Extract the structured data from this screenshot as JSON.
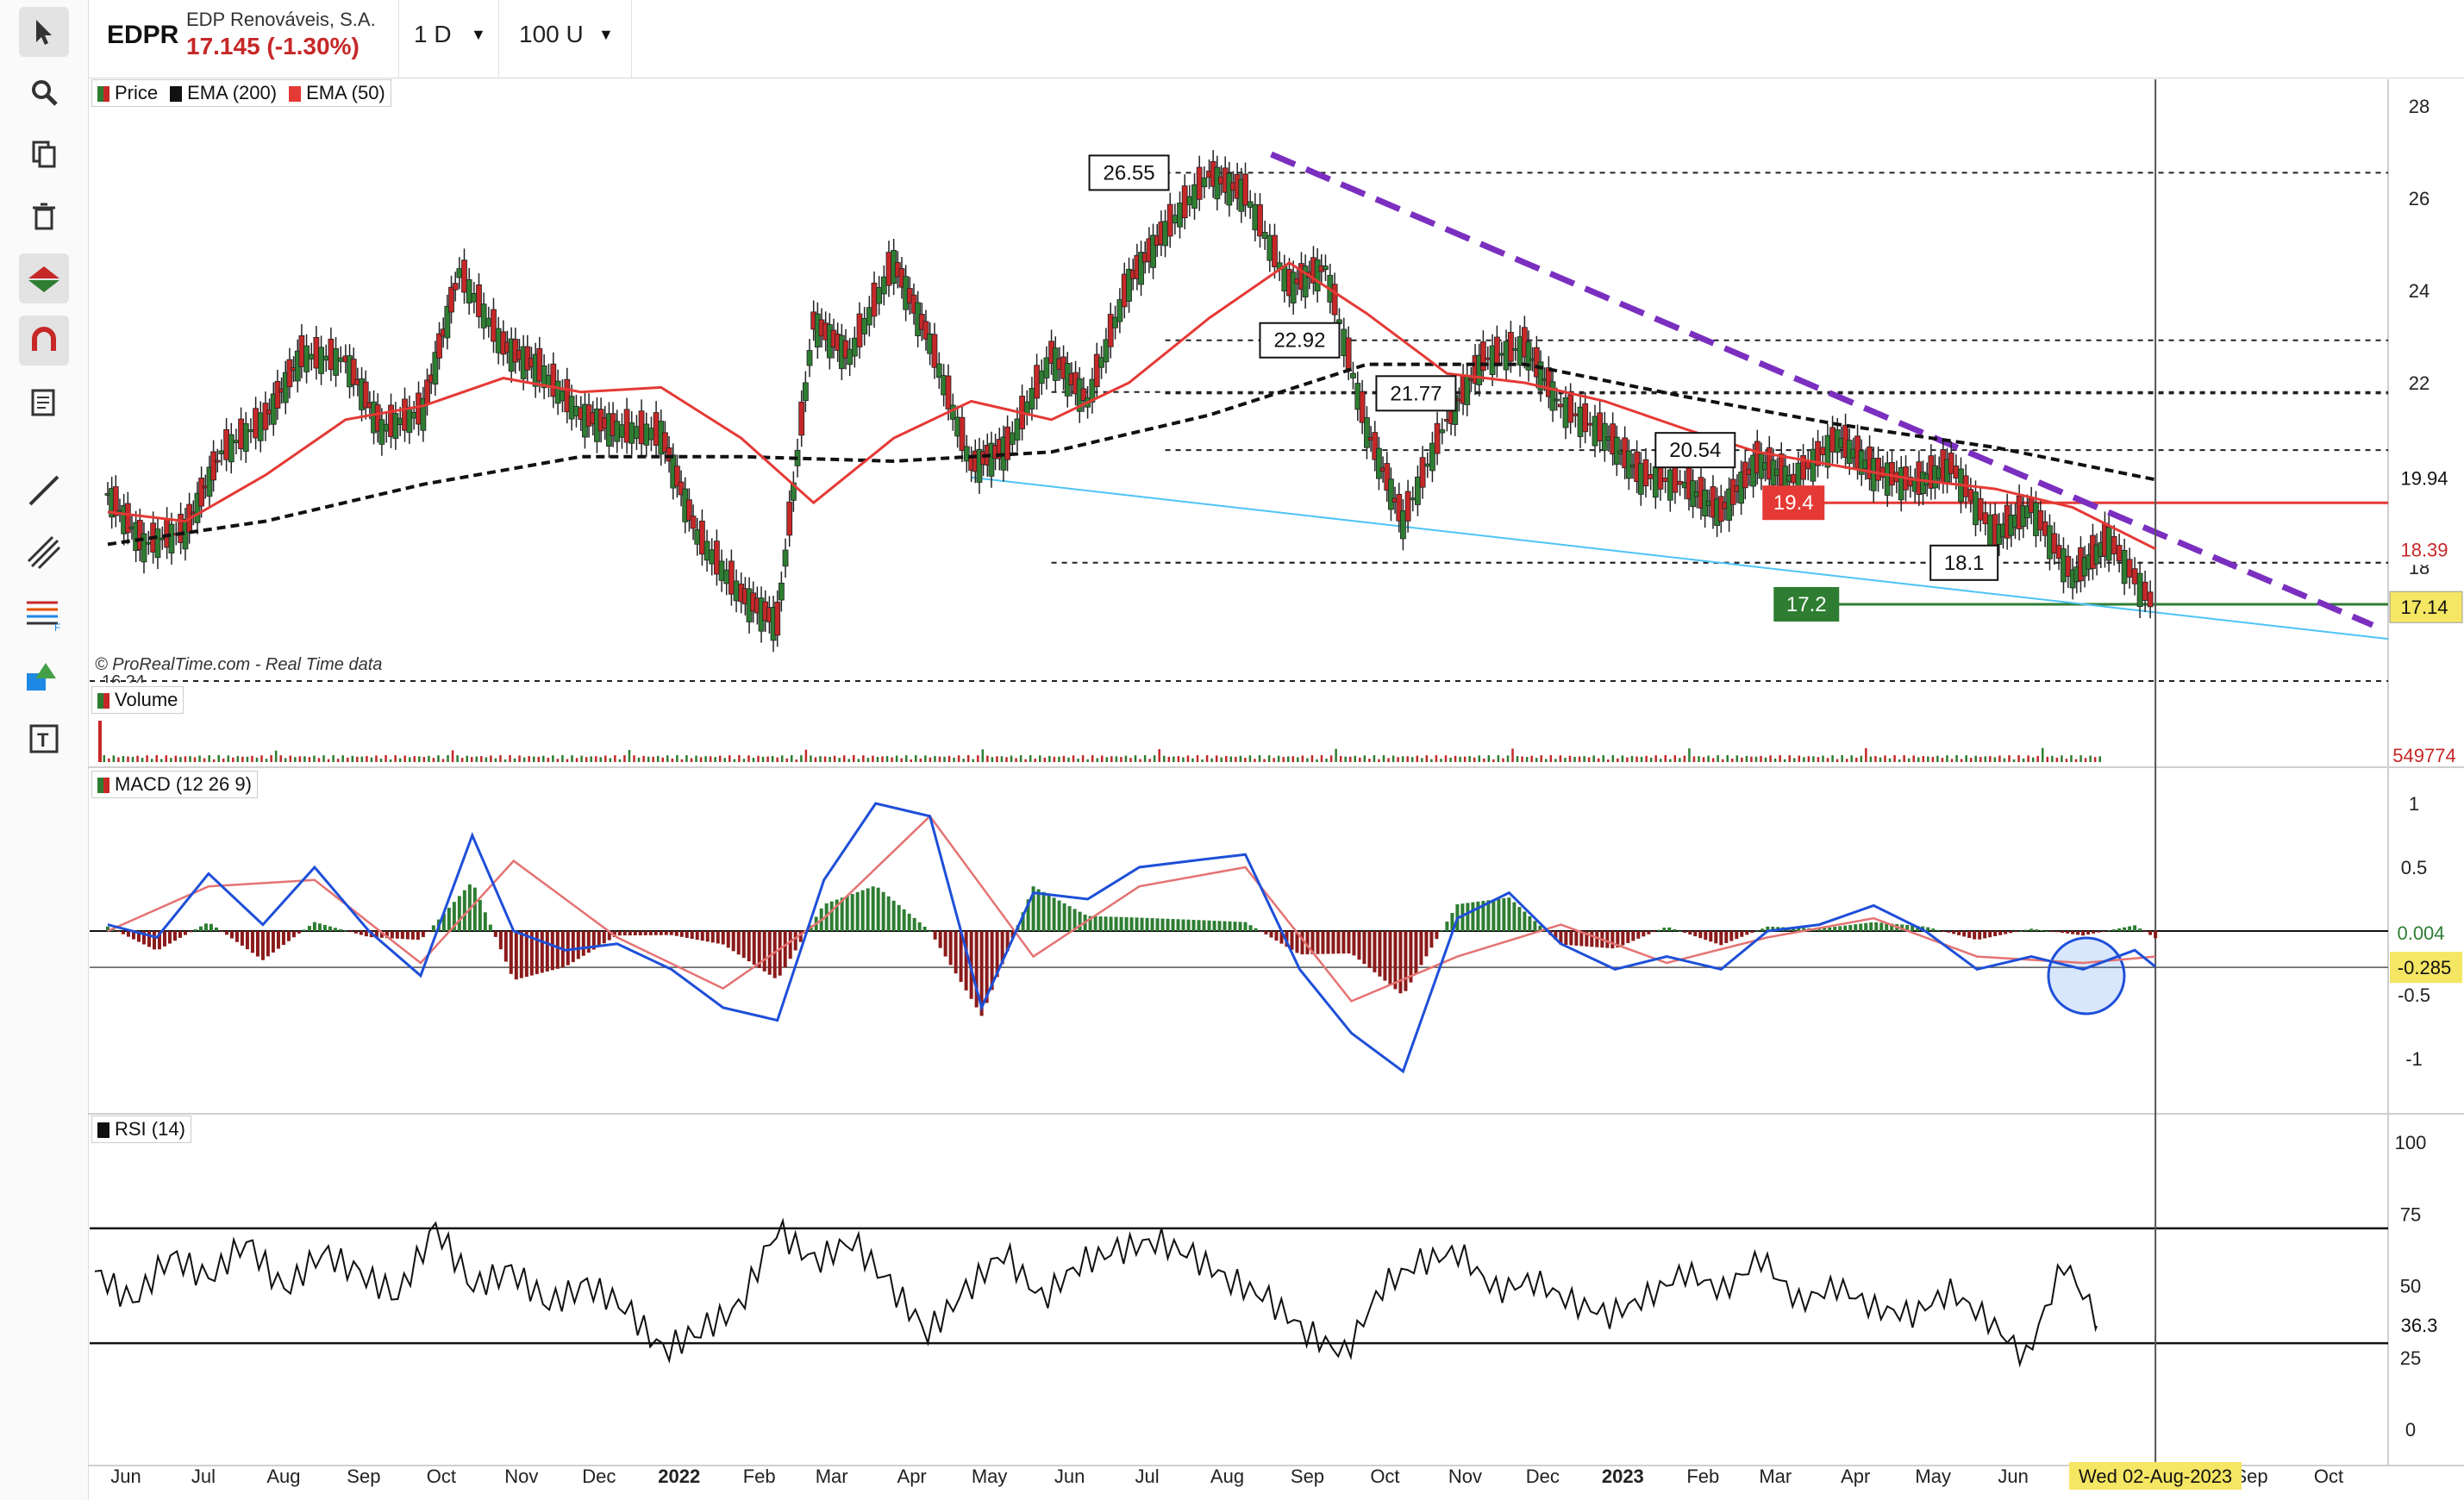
{
  "header": {
    "symbol": "EDPR",
    "name": "EDP Renováveis, S.A.",
    "price": "17.145 (-1.30%)",
    "interval": "1 D",
    "units": "100 U"
  },
  "toolbar": {
    "icons": [
      "cursor-icon",
      "zoom-icon",
      "copy-icon",
      "trash-icon",
      "trend-icon",
      "magnet-icon",
      "notes-icon",
      "line-icon",
      "channel-icon",
      "fibonacci-icon",
      "shapes-icon",
      "text-icon"
    ]
  },
  "legends": {
    "price": "Price",
    "ema200": "EMA (200)",
    "ema50": "EMA (50)",
    "volume": "Volume",
    "macd": "MACD (12 26 9)",
    "rsi": "RSI (14)",
    "watermark": "© ProRealTime.com - Real Time data",
    "cut_label": "16.24"
  },
  "colors": {
    "up": "#2e7d32",
    "down": "#c62828",
    "ema50": "#e53935",
    "ema200": "#111111",
    "trendline": "#7b2fbf",
    "support_line": "#4fc3f7",
    "level_red": "#e53935",
    "level_green": "#2e7d32",
    "highlight": "#f5e663"
  },
  "chart_data": {
    "type": "line",
    "x_ticks": [
      "Jun",
      "Jul",
      "Aug",
      "Sep",
      "Oct",
      "Nov",
      "Dec",
      "2022",
      "Feb",
      "Mar",
      "Apr",
      "May",
      "Jun",
      "Jul",
      "Aug",
      "Sep",
      "Oct",
      "Nov",
      "Dec",
      "2023",
      "Feb",
      "Mar",
      "Apr",
      "May",
      "Jun",
      "Jul",
      "Aug",
      "Sep",
      "Oct"
    ],
    "cursor_date": "Wed 02-Aug-2023",
    "price_axis": {
      "ticks": [
        28,
        26,
        24,
        22,
        20,
        18
      ],
      "ylim": [
        15.5,
        28.5
      ]
    },
    "tags": [
      {
        "label": "19.94",
        "value": 19.94,
        "style": "plain"
      },
      {
        "label": "18.39",
        "value": 18.39,
        "style": "red-text"
      },
      {
        "label": "17.14",
        "value": 17.14,
        "style": "yellow"
      }
    ],
    "annotations": [
      {
        "label": "26.55",
        "value": 26.55
      },
      {
        "label": "22.92",
        "value": 22.92
      },
      {
        "label": "21.77",
        "value": 21.77
      },
      {
        "label": "20.54",
        "value": 20.54
      },
      {
        "label": "18.1",
        "value": 18.1
      }
    ],
    "extra_levels": [
      21.8,
      18.1
    ],
    "red_level": {
      "label": "19.4",
      "value": 19.4
    },
    "green_level": {
      "label": "17.2",
      "value": 17.2
    },
    "series": [
      {
        "name": "Price",
        "x": [
          "2021-06-01",
          "2021-06-15",
          "2021-07-01",
          "2021-07-15",
          "2021-08-01",
          "2021-08-15",
          "2021-09-01",
          "2021-09-15",
          "2021-10-01",
          "2021-10-15",
          "2021-11-01",
          "2021-11-15",
          "2021-12-01",
          "2021-12-15",
          "2022-01-01",
          "2022-01-15",
          "2022-02-01",
          "2022-02-15",
          "2022-03-01",
          "2022-03-15",
          "2022-04-01",
          "2022-04-15",
          "2022-05-01",
          "2022-05-15",
          "2022-06-01",
          "2022-06-15",
          "2022-07-01",
          "2022-07-15",
          "2022-08-01",
          "2022-08-15",
          "2022-09-01",
          "2022-09-15",
          "2022-10-01",
          "2022-10-15",
          "2022-11-01",
          "2022-11-15",
          "2022-12-01",
          "2022-12-15",
          "2023-01-01",
          "2023-01-15",
          "2023-02-01",
          "2023-02-15",
          "2023-03-01",
          "2023-03-15",
          "2023-04-01",
          "2023-04-15",
          "2023-05-01",
          "2023-05-15",
          "2023-06-01",
          "2023-06-15",
          "2023-07-01",
          "2023-07-15",
          "2023-08-02"
        ],
        "values": [
          19.6,
          18.5,
          18.8,
          20.5,
          21.2,
          22.6,
          22.5,
          21.0,
          21.4,
          24.4,
          22.8,
          22.3,
          21.3,
          21.0,
          20.9,
          18.7,
          17.4,
          16.8,
          23.3,
          22.6,
          24.6,
          22.9,
          20.2,
          20.6,
          22.6,
          21.6,
          24.2,
          25.3,
          26.5,
          26.1,
          24.1,
          24.5,
          21.0,
          19.0,
          21.2,
          22.5,
          22.8,
          21.5,
          20.9,
          20.0,
          19.8,
          19.2,
          20.3,
          19.9,
          20.8,
          20.1,
          19.8,
          20.2,
          18.7,
          19.3,
          17.8,
          18.6,
          17.1
        ]
      },
      {
        "name": "EMA (50)",
        "x": [
          "2021-06-01",
          "2021-07-01",
          "2021-08-01",
          "2021-09-01",
          "2021-10-01",
          "2021-11-01",
          "2021-12-01",
          "2022-01-01",
          "2022-02-01",
          "2022-03-01",
          "2022-04-01",
          "2022-05-01",
          "2022-06-01",
          "2022-07-01",
          "2022-08-01",
          "2022-09-01",
          "2022-10-01",
          "2022-11-01",
          "2022-12-01",
          "2023-01-01",
          "2023-02-01",
          "2023-03-01",
          "2023-04-01",
          "2023-05-01",
          "2023-06-01",
          "2023-07-01",
          "2023-08-02"
        ],
        "values": [
          19.2,
          19.0,
          20.0,
          21.2,
          21.5,
          22.1,
          21.8,
          21.9,
          20.8,
          19.4,
          20.8,
          21.6,
          21.2,
          22.0,
          23.4,
          24.6,
          23.5,
          22.2,
          22.0,
          21.6,
          21.0,
          20.5,
          20.2,
          19.9,
          19.7,
          19.3,
          18.4
        ]
      },
      {
        "name": "EMA (200)",
        "x": [
          "2021-06-01",
          "2021-08-01",
          "2021-10-01",
          "2021-12-01",
          "2022-02-01",
          "2022-04-01",
          "2022-06-01",
          "2022-08-01",
          "2022-10-01",
          "2022-12-01",
          "2023-02-01",
          "2023-04-01",
          "2023-06-01",
          "2023-08-02"
        ],
        "values": [
          18.5,
          19.0,
          19.8,
          20.4,
          20.4,
          20.3,
          20.5,
          21.3,
          22.4,
          22.4,
          21.7,
          21.1,
          20.6,
          19.9
        ]
      }
    ],
    "volume": {
      "tag": "549774"
    },
    "macd": {
      "ticks": [
        1,
        0.5,
        -0.5,
        -1
      ],
      "tags": [
        {
          "label": "0.004",
          "value": 0.004
        },
        {
          "label": "-0.285",
          "value": -0.285
        }
      ],
      "series": [
        {
          "name": "MACD",
          "x": [
            "2021-06-01",
            "2021-06-20",
            "2021-07-10",
            "2021-07-31",
            "2021-08-20",
            "2021-09-10",
            "2021-09-30",
            "2021-10-20",
            "2021-11-05",
            "2021-11-25",
            "2021-12-15",
            "2022-01-05",
            "2022-01-25",
            "2022-02-15",
            "2022-03-05",
            "2022-03-25",
            "2022-04-15",
            "2022-05-05",
            "2022-05-25",
            "2022-06-15",
            "2022-07-05",
            "2022-07-25",
            "2022-08-15",
            "2022-09-05",
            "2022-09-25",
            "2022-10-15",
            "2022-11-05",
            "2022-11-25",
            "2022-12-15",
            "2023-01-05",
            "2023-01-25",
            "2023-02-15",
            "2023-03-05",
            "2023-03-25",
            "2023-04-15",
            "2023-05-05",
            "2023-05-25",
            "2023-06-15",
            "2023-07-05",
            "2023-07-25",
            "2023-08-02"
          ],
          "values": [
            0.05,
            -0.05,
            0.45,
            0.05,
            0.5,
            0.0,
            -0.35,
            0.75,
            0.0,
            -0.15,
            -0.1,
            -0.3,
            -0.6,
            -0.7,
            0.4,
            1.0,
            0.9,
            -0.6,
            0.3,
            0.25,
            0.5,
            0.55,
            0.6,
            -0.3,
            -0.8,
            -1.1,
            0.1,
            0.3,
            -0.1,
            -0.3,
            -0.2,
            -0.3,
            0.0,
            0.05,
            0.2,
            0.0,
            -0.3,
            -0.2,
            -0.3,
            -0.15,
            -0.28
          ]
        },
        {
          "name": "Signal",
          "x": [
            "2021-06-01",
            "2021-07-10",
            "2021-08-20",
            "2021-09-30",
            "2021-11-05",
            "2021-12-15",
            "2022-01-25",
            "2022-03-05",
            "2022-04-15",
            "2022-05-25",
            "2022-07-05",
            "2022-08-15",
            "2022-09-25",
            "2022-11-05",
            "2022-12-15",
            "2023-01-25",
            "2023-03-05",
            "2023-04-15",
            "2023-05-25",
            "2023-07-05",
            "2023-08-02"
          ],
          "values": [
            0.0,
            0.35,
            0.4,
            -0.25,
            0.55,
            -0.05,
            -0.45,
            0.1,
            0.9,
            -0.2,
            0.35,
            0.5,
            -0.55,
            -0.2,
            0.05,
            -0.25,
            -0.05,
            0.1,
            -0.2,
            -0.25,
            -0.2
          ]
        }
      ]
    },
    "rsi": {
      "ticks": [
        100,
        75,
        50,
        25,
        0
      ],
      "levels": [
        70,
        30
      ],
      "tag": "36.3",
      "values": [
        55,
        44,
        61,
        52,
        66,
        48,
        62,
        54,
        47,
        70,
        50,
        55,
        44,
        50,
        43,
        27,
        35,
        42,
        70,
        58,
        66,
        50,
        34,
        48,
        62,
        45,
        58,
        62,
        66,
        60,
        52,
        45,
        34,
        26,
        50,
        58,
        62,
        48,
        52,
        44,
        40,
        46,
        55,
        48,
        60,
        44,
        50,
        42,
        40,
        48,
        38,
        25,
        58,
        36
      ]
    }
  }
}
